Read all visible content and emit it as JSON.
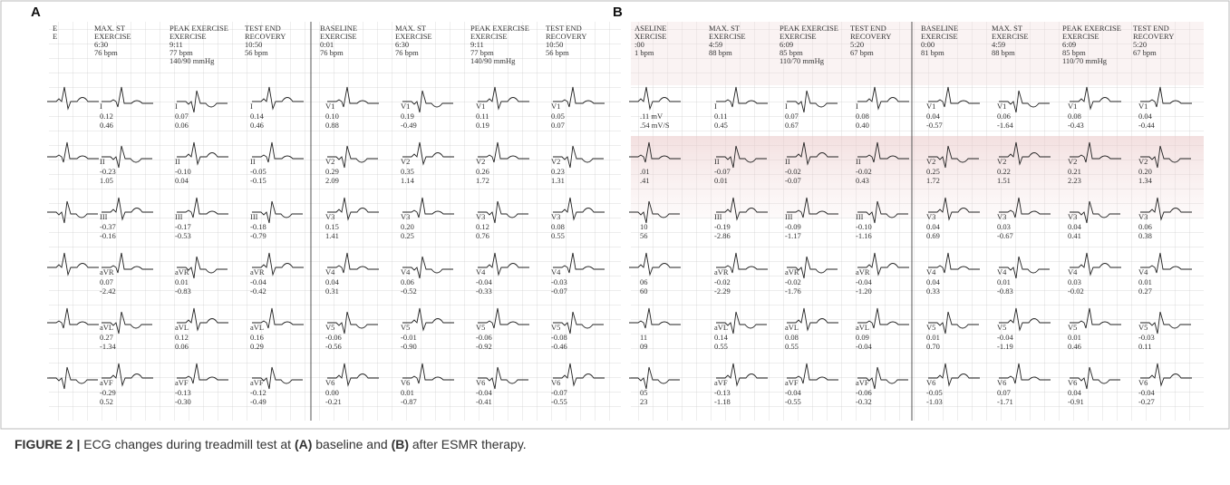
{
  "figure": {
    "panels": [
      {
        "label": "A",
        "partial_width": 42,
        "col_width": 83,
        "x": 58,
        "tint": false,
        "columns": [
          {
            "header": [
              "E",
              "E"
            ],
            "cells": []
          },
          {
            "header": [
              "MAX. ST",
              "EXERCISE",
              "6:30",
              "76 bpm"
            ],
            "cells": [
              {
                "lead": "I",
                "lines": [
                  "0.12",
                  "0.46"
                ]
              },
              {
                "lead": "II",
                "lines": [
                  "-0.23",
                  "1.05"
                ]
              },
              {
                "lead": "III",
                "lines": [
                  "-0.37",
                  "-0.16"
                ]
              },
              {
                "lead": "aVR",
                "lines": [
                  "0.07",
                  "-2.42"
                ]
              },
              {
                "lead": "aVL",
                "lines": [
                  "0.27",
                  "-1.34"
                ]
              },
              {
                "lead": "aVF",
                "lines": [
                  "-0.29",
                  "0.52"
                ]
              }
            ]
          },
          {
            "header": [
              "PEAK EXERCISE",
              "EXERCISE",
              "9:11",
              "77 bpm",
              "140/90 mmHg"
            ],
            "cells": [
              {
                "lead": "I",
                "lines": [
                  "0.07",
                  "0.06"
                ]
              },
              {
                "lead": "II",
                "lines": [
                  "-0.10",
                  "0.04"
                ]
              },
              {
                "lead": "III",
                "lines": [
                  "-0.17",
                  "-0.53"
                ]
              },
              {
                "lead": "aVR",
                "lines": [
                  "0.01",
                  "-0.83"
                ]
              },
              {
                "lead": "aVL",
                "lines": [
                  "0.12",
                  "0.06"
                ]
              },
              {
                "lead": "aVF",
                "lines": [
                  "-0.13",
                  "-0.30"
                ]
              }
            ]
          },
          {
            "header": [
              "TEST END",
              "RECOVERY",
              "10:50",
              "56 bpm"
            ],
            "cells": [
              {
                "lead": "I",
                "lines": [
                  "0.14",
                  "0.46"
                ]
              },
              {
                "lead": "II",
                "lines": [
                  "-0.05",
                  "-0.15"
                ]
              },
              {
                "lead": "III",
                "lines": [
                  "-0.18",
                  "-0.79"
                ]
              },
              {
                "lead": "aVR",
                "lines": [
                  "-0.04",
                  "-0.42"
                ]
              },
              {
                "lead": "aVL",
                "lines": [
                  "0.16",
                  "0.29"
                ]
              },
              {
                "lead": "aVF",
                "lines": [
                  "-0.12",
                  "-0.49"
                ]
              }
            ]
          },
          {
            "header": [
              "BASELINE",
              "EXERCISE",
              "0:01",
              "76 bpm"
            ],
            "cells": [
              {
                "lead": "V1",
                "lines": [
                  "0.10",
                  "0.88"
                ]
              },
              {
                "lead": "V2",
                "lines": [
                  "0.29",
                  "2.09"
                ]
              },
              {
                "lead": "V3",
                "lines": [
                  "0.15",
                  "1.41"
                ]
              },
              {
                "lead": "V4",
                "lines": [
                  "0.04",
                  "0.31"
                ]
              },
              {
                "lead": "V5",
                "lines": [
                  "-0.06",
                  "-0.56"
                ]
              },
              {
                "lead": "V6",
                "lines": [
                  "0.00",
                  "-0.21"
                ]
              }
            ]
          },
          {
            "header": [
              "MAX. ST",
              "EXERCISE",
              "6:30",
              "76 bpm"
            ],
            "cells": [
              {
                "lead": "V1",
                "lines": [
                  "0.19",
                  "-0.49"
                ]
              },
              {
                "lead": "V2",
                "lines": [
                  "0.35",
                  "1.14"
                ]
              },
              {
                "lead": "V3",
                "lines": [
                  "0.20",
                  "0.25"
                ]
              },
              {
                "lead": "V4",
                "lines": [
                  "0.06",
                  "-0.52"
                ]
              },
              {
                "lead": "V5",
                "lines": [
                  "-0.01",
                  "-0.90"
                ]
              },
              {
                "lead": "V6",
                "lines": [
                  "0.01",
                  "-0.87"
                ]
              }
            ]
          },
          {
            "header": [
              "PEAK EXERCISE",
              "EXERCISE",
              "9:11",
              "77 bpm",
              "140/90 mmHg"
            ],
            "cells": [
              {
                "lead": "V1",
                "lines": [
                  "0.11",
                  "0.19"
                ]
              },
              {
                "lead": "V2",
                "lines": [
                  "0.26",
                  "1.72"
                ]
              },
              {
                "lead": "V3",
                "lines": [
                  "0.12",
                  "0.76"
                ]
              },
              {
                "lead": "V4",
                "lines": [
                  "-0.04",
                  "-0.33"
                ]
              },
              {
                "lead": "V5",
                "lines": [
                  "-0.06",
                  "-0.92"
                ]
              },
              {
                "lead": "V6",
                "lines": [
                  "-0.04",
                  "-0.41"
                ]
              }
            ]
          },
          {
            "header": [
              "TEST END",
              "RECOVERY",
              "10:50",
              "56 bpm"
            ],
            "cells": [
              {
                "lead": "V1",
                "lines": [
                  "0.05",
                  "0.07"
                ]
              },
              {
                "lead": "V2",
                "lines": [
                  "0.23",
                  "1.31"
                ]
              },
              {
                "lead": "V3",
                "lines": [
                  "0.08",
                  "0.55"
                ]
              },
              {
                "lead": "V4",
                "lines": [
                  "-0.03",
                  "-0.07"
                ]
              },
              {
                "lead": "V5",
                "lines": [
                  "-0.08",
                  "-0.46"
                ]
              },
              {
                "lead": "V6",
                "lines": [
                  "-0.07",
                  "-0.55"
                ]
              }
            ]
          }
        ]
      },
      {
        "label": "B",
        "partial_width": 78,
        "col_width": 78,
        "x": 700,
        "tint": true,
        "columns": [
          {
            "header": [
              "ASELINE",
              "XERCISE",
              ":00",
              "1 bpm"
            ],
            "cells": [
              {
                "lines": [
                  ".11 mV",
                  ".54 mV/S"
                ]
              },
              {
                "lines": [
                  ".01",
                  ".41"
                ]
              },
              {
                "lines": [
                  "10",
                  "56"
                ]
              },
              {
                "lines": [
                  "06",
                  "60"
                ]
              },
              {
                "lines": [
                  "11",
                  "09"
                ]
              },
              {
                "lines": [
                  "05",
                  "23"
                ]
              }
            ]
          },
          {
            "header": [
              "MAX. ST",
              "EXERCISE",
              "4:59",
              "88 bpm"
            ],
            "cells": [
              {
                "lead": "I",
                "lines": [
                  "0.11",
                  "0.45"
                ]
              },
              {
                "lead": "II",
                "lines": [
                  "-0.07",
                  "0.01"
                ]
              },
              {
                "lead": "III",
                "lines": [
                  "-0.19",
                  "-2.86"
                ]
              },
              {
                "lead": "aVR",
                "lines": [
                  "-0.02",
                  "-2.29"
                ]
              },
              {
                "lead": "aVL",
                "lines": [
                  "0.14",
                  "0.55"
                ]
              },
              {
                "lead": "aVF",
                "lines": [
                  "-0.13",
                  "-1.18"
                ]
              }
            ]
          },
          {
            "header": [
              "PEAK EXERCISE",
              "EXERCISE",
              "6:09",
              "85 bpm",
              "110/70 mmHg"
            ],
            "cells": [
              {
                "lead": "I",
                "lines": [
                  "0.07",
                  "0.67"
                ]
              },
              {
                "lead": "II",
                "lines": [
                  "-0.02",
                  "-0.07"
                ]
              },
              {
                "lead": "III",
                "lines": [
                  "-0.09",
                  "-1.17"
                ]
              },
              {
                "lead": "aVR",
                "lines": [
                  "-0.02",
                  "-1.76"
                ]
              },
              {
                "lead": "aVL",
                "lines": [
                  "0.08",
                  "0.55"
                ]
              },
              {
                "lead": "aVF",
                "lines": [
                  "-0.04",
                  "-0.55"
                ]
              }
            ]
          },
          {
            "header": [
              "TEST END",
              "RECOVERY",
              "5:20",
              "67 bpm"
            ],
            "cells": [
              {
                "lead": "I",
                "lines": [
                  "0.08",
                  "0.40"
                ]
              },
              {
                "lead": "II",
                "lines": [
                  "-0.02",
                  "0.43"
                ]
              },
              {
                "lead": "III",
                "lines": [
                  "-0.10",
                  "-1.16"
                ]
              },
              {
                "lead": "aVR",
                "lines": [
                  "-0.04",
                  "-1.20"
                ]
              },
              {
                "lead": "aVL",
                "lines": [
                  "0.09",
                  "-0.04"
                ]
              },
              {
                "lead": "aVF",
                "lines": [
                  "-0.06",
                  "-0.32"
                ]
              }
            ]
          },
          {
            "header": [
              "BASELINE",
              "EXERCISE",
              "0:00",
              "81 bpm"
            ],
            "cells": [
              {
                "lead": "V1",
                "lines": [
                  "0.04",
                  "-0.57"
                ]
              },
              {
                "lead": "V2",
                "lines": [
                  "0.25",
                  "1.72"
                ]
              },
              {
                "lead": "V3",
                "lines": [
                  "0.04",
                  "0.69"
                ]
              },
              {
                "lead": "V4",
                "lines": [
                  "0.04",
                  "0.33"
                ]
              },
              {
                "lead": "V5",
                "lines": [
                  "0.01",
                  "0.70"
                ]
              },
              {
                "lead": "V6",
                "lines": [
                  "-0.05",
                  "-1.03"
                ]
              }
            ]
          },
          {
            "header": [
              "MAX. ST",
              "EXERCISE",
              "4:59",
              "88 bpm"
            ],
            "cells": [
              {
                "lead": "V1",
                "lines": [
                  "0.06",
                  "-1.64"
                ]
              },
              {
                "lead": "V2",
                "lines": [
                  "0.22",
                  "1.51"
                ]
              },
              {
                "lead": "V3",
                "lines": [
                  "0.03",
                  "-0.67"
                ]
              },
              {
                "lead": "V4",
                "lines": [
                  "0.01",
                  "-0.83"
                ]
              },
              {
                "lead": "V5",
                "lines": [
                  "-0.04",
                  "-1.19"
                ]
              },
              {
                "lead": "V6",
                "lines": [
                  "0.07",
                  "-1.71"
                ]
              }
            ]
          },
          {
            "header": [
              "PEAK EXERCISE",
              "EXERCISE",
              "6:09",
              "85 bpm",
              "110/70 mmHg"
            ],
            "cells": [
              {
                "lead": "V1",
                "lines": [
                  "0.08",
                  "-0.43"
                ]
              },
              {
                "lead": "V2",
                "lines": [
                  "0.21",
                  "2.23"
                ]
              },
              {
                "lead": "V3",
                "lines": [
                  "0.04",
                  "0.41"
                ]
              },
              {
                "lead": "V4",
                "lines": [
                  "0.03",
                  "-0.02"
                ]
              },
              {
                "lead": "V5",
                "lines": [
                  "0.01",
                  "0.46"
                ]
              },
              {
                "lead": "V6",
                "lines": [
                  "0.04",
                  "-0.91"
                ]
              }
            ]
          },
          {
            "header": [
              "TEST END",
              "RECOVERY",
              "5:20",
              "67 bpm"
            ],
            "cells": [
              {
                "lead": "V1",
                "lines": [
                  "0.04",
                  "-0.44"
                ]
              },
              {
                "lead": "V2",
                "lines": [
                  "0.20",
                  "1.34"
                ]
              },
              {
                "lead": "V3",
                "lines": [
                  "0.06",
                  "0.38"
                ]
              },
              {
                "lead": "V4",
                "lines": [
                  "0.01",
                  "0.27"
                ]
              },
              {
                "lead": "V5",
                "lines": [
                  "-0.03",
                  "0.11"
                ]
              },
              {
                "lead": "V6",
                "lines": [
                  "-0.04",
                  "-0.27"
                ]
              }
            ]
          }
        ]
      }
    ],
    "caption": {
      "label": "FIGURE 2 |",
      "parts": [
        "ECG changes during treadmill test at ",
        "(A)",
        " baseline and ",
        "(B)",
        " after ESMR therapy."
      ]
    }
  }
}
